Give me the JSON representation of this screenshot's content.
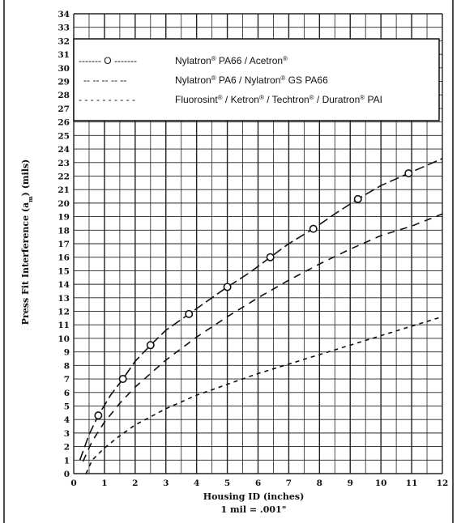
{
  "chart_data": {
    "type": "line",
    "xlabel": "Housing ID (inches)",
    "xnote": "1 mil = .001\"",
    "ylabel": "Press Fit Interference (a) (mils)",
    "xlim": [
      0,
      12
    ],
    "ylim": [
      0,
      34
    ],
    "x_ticks": [
      "0",
      "1",
      "2",
      "3",
      "4",
      "5",
      "6",
      "7",
      "8",
      "9",
      "10",
      "11",
      "12"
    ],
    "y_ticks": [
      "0",
      "1",
      "2",
      "3",
      "4",
      "5",
      "6",
      "7",
      "8",
      "9",
      "10",
      "11",
      "12",
      "13",
      "14",
      "15",
      "16",
      "17",
      "18",
      "19",
      "20",
      "21",
      "22",
      "23",
      "24",
      "25",
      "26",
      "27",
      "28",
      "29",
      "30",
      "31",
      "32",
      "33",
      "34"
    ],
    "grid": true,
    "legend_position": "top",
    "series": [
      {
        "name": "Nylatron® PA66 / Acetron®",
        "legend_symbol": "------- O -------",
        "style": "long-dash with circle markers",
        "x": [
          0.2,
          0.5,
          0.8,
          1.2,
          1.6,
          2.0,
          2.5,
          3.0,
          3.75,
          4.5,
          5.0,
          5.75,
          6.4,
          7.0,
          7.8,
          8.5,
          9.25,
          10.0,
          10.9,
          11.5,
          12.0
        ],
        "values": [
          1.0,
          2.9,
          4.3,
          5.8,
          7.0,
          8.3,
          9.5,
          10.6,
          11.8,
          13.0,
          13.8,
          14.9,
          16.0,
          17.0,
          18.1,
          19.2,
          20.3,
          21.3,
          22.2,
          22.8,
          23.3
        ],
        "markers_x": [
          0.8,
          1.6,
          2.5,
          3.75,
          5.0,
          6.4,
          7.8,
          9.25,
          10.9
        ],
        "markers_y": [
          4.3,
          7.0,
          9.5,
          11.8,
          13.8,
          16.0,
          18.1,
          20.3,
          22.2
        ]
      },
      {
        "name": "Nylatron® PA6 / Nylatron® GS PA66",
        "legend_symbol": "-- -- -- -- --",
        "style": "medium-dash",
        "x": [
          0.3,
          0.6,
          1.0,
          1.5,
          2.0,
          3.0,
          4.0,
          5.0,
          6.0,
          7.0,
          8.0,
          9.0,
          10.0,
          11.0,
          12.0
        ],
        "values": [
          0.9,
          2.4,
          3.8,
          5.2,
          6.4,
          8.4,
          10.1,
          11.6,
          13.0,
          14.3,
          15.5,
          16.6,
          17.6,
          18.3,
          19.2
        ]
      },
      {
        "name": "Fluorosint® / Ketron® / Techtron® / Duratron® PAI",
        "legend_symbol": "- - - - - - - - - -",
        "style": "short-dash",
        "x": [
          0.4,
          0.6,
          1.0,
          1.5,
          2.0,
          3.0,
          4.0,
          5.0,
          6.0,
          7.0,
          8.0,
          9.0,
          10.0,
          11.0,
          12.0
        ],
        "values": [
          0.0,
          1.0,
          1.9,
          2.8,
          3.6,
          4.8,
          5.8,
          6.6,
          7.4,
          8.1,
          8.8,
          9.5,
          10.2,
          10.9,
          11.6
        ]
      }
    ]
  },
  "colors": {
    "line": "#111111",
    "grid": "#222222",
    "background": "#ffffff"
  }
}
